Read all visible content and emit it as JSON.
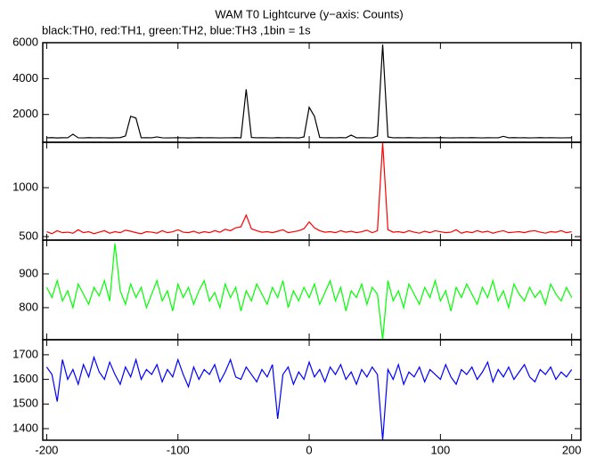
{
  "chart_data": [
    {
      "type": "line",
      "title": "WAM T0 Lightcurve (y−axis: Counts)",
      "subtitle": "black:TH0, red:TH1, green:TH2, blue:TH3 ,1bin = 1s",
      "x": [
        -200,
        -196,
        -192,
        -188,
        -184,
        -180,
        -176,
        -172,
        -168,
        -164,
        -160,
        -156,
        -152,
        -148,
        -144,
        -140,
        -136,
        -132,
        -128,
        -124,
        -120,
        -116,
        -112,
        -108,
        -104,
        -100,
        -96,
        -92,
        -88,
        -84,
        -80,
        -76,
        -72,
        -68,
        -64,
        -60,
        -56,
        -52,
        -48,
        -44,
        -40,
        -36,
        -32,
        -28,
        -24,
        -20,
        -16,
        -12,
        -8,
        -4,
        0,
        4,
        8,
        12,
        16,
        20,
        24,
        28,
        32,
        36,
        40,
        44,
        48,
        52,
        56,
        60,
        64,
        68,
        72,
        76,
        80,
        84,
        88,
        92,
        96,
        100,
        104,
        108,
        112,
        116,
        120,
        124,
        128,
        132,
        136,
        140,
        144,
        148,
        152,
        156,
        160,
        164,
        168,
        172,
        176,
        180,
        184,
        188,
        192,
        196,
        200
      ],
      "series": [
        {
          "name": "TH0",
          "color": "#000000",
          "values": [
            700,
            710,
            690,
            705,
            700,
            900,
            700,
            695,
            710,
            700,
            705,
            700,
            690,
            700,
            710,
            800,
            1900,
            1800,
            700,
            705,
            700,
            750,
            700,
            695,
            700,
            705,
            700,
            690,
            700,
            710,
            700,
            705,
            700,
            695,
            700,
            700,
            710,
            700,
            3400,
            720,
            700,
            705,
            700,
            695,
            710,
            700,
            705,
            700,
            690,
            750,
            2400,
            1900,
            720,
            700,
            705,
            700,
            710,
            700,
            850,
            700,
            705,
            700,
            695,
            800,
            5900,
            750,
            700,
            705,
            700,
            710,
            700,
            695,
            705,
            700,
            700,
            710,
            700,
            695,
            700,
            705,
            700,
            710,
            700,
            695,
            705,
            700,
            700,
            780,
            700,
            710,
            700,
            705,
            695,
            700,
            710,
            700,
            705,
            700,
            695,
            700,
            705
          ]
        }
      ],
      "xlim": [
        -203,
        207
      ],
      "xticks": [
        -200,
        -100,
        0,
        100,
        200
      ],
      "ylim": [
        450,
        6000
      ],
      "yticks": [
        2000,
        4000,
        6000
      ]
    },
    {
      "type": "line",
      "x": [
        -200,
        -196,
        -192,
        -188,
        -184,
        -180,
        -176,
        -172,
        -168,
        -164,
        -160,
        -156,
        -152,
        -148,
        -144,
        -140,
        -136,
        -132,
        -128,
        -124,
        -120,
        -116,
        -112,
        -108,
        -104,
        -100,
        -96,
        -92,
        -88,
        -84,
        -80,
        -76,
        -72,
        -68,
        -64,
        -60,
        -56,
        -52,
        -48,
        -44,
        -40,
        -36,
        -32,
        -28,
        -24,
        -20,
        -16,
        -12,
        -8,
        -4,
        0,
        4,
        8,
        12,
        16,
        20,
        24,
        28,
        32,
        36,
        40,
        44,
        48,
        52,
        56,
        60,
        64,
        68,
        72,
        76,
        80,
        84,
        88,
        92,
        96,
        100,
        104,
        108,
        112,
        116,
        120,
        124,
        128,
        132,
        136,
        140,
        144,
        148,
        152,
        156,
        160,
        164,
        168,
        172,
        176,
        180,
        184,
        188,
        192,
        196,
        200
      ],
      "series": [
        {
          "name": "TH1",
          "color": "#ff0000",
          "values": [
            550,
            530,
            560,
            540,
            545,
            535,
            570,
            540,
            550,
            530,
            545,
            560,
            535,
            550,
            540,
            565,
            555,
            540,
            530,
            550,
            545,
            535,
            560,
            540,
            550,
            570,
            545,
            540,
            555,
            535,
            550,
            540,
            560,
            545,
            575,
            560,
            590,
            600,
            720,
            580,
            560,
            545,
            550,
            540,
            555,
            570,
            540,
            550,
            560,
            580,
            650,
            590,
            560,
            545,
            550,
            540,
            560,
            545,
            555,
            540,
            550,
            565,
            540,
            560,
            1460,
            570,
            545,
            550,
            540,
            560,
            545,
            535,
            555,
            540,
            560,
            550,
            540,
            545,
            570,
            535,
            550,
            540,
            560,
            545,
            555,
            535,
            550,
            560,
            540,
            545,
            550,
            540,
            555,
            560,
            545,
            535,
            550,
            545,
            560,
            540,
            550
          ]
        }
      ],
      "xlim": [
        -203,
        207
      ],
      "xticks": [
        -200,
        -100,
        0,
        100,
        200
      ],
      "ylim": [
        464,
        1464
      ],
      "yticks": [
        500,
        1000
      ]
    },
    {
      "type": "line",
      "x": [
        -200,
        -196,
        -192,
        -188,
        -184,
        -180,
        -176,
        -172,
        -168,
        -164,
        -160,
        -156,
        -152,
        -148,
        -144,
        -140,
        -136,
        -132,
        -128,
        -124,
        -120,
        -116,
        -112,
        -108,
        -104,
        -100,
        -96,
        -92,
        -88,
        -84,
        -80,
        -76,
        -72,
        -68,
        -64,
        -60,
        -56,
        -52,
        -48,
        -44,
        -40,
        -36,
        -32,
        -28,
        -24,
        -20,
        -16,
        -12,
        -8,
        -4,
        0,
        4,
        8,
        12,
        16,
        20,
        24,
        28,
        32,
        36,
        40,
        44,
        48,
        52,
        56,
        60,
        64,
        68,
        72,
        76,
        80,
        84,
        88,
        92,
        96,
        100,
        104,
        108,
        112,
        116,
        120,
        124,
        128,
        132,
        136,
        140,
        144,
        148,
        152,
        156,
        160,
        164,
        168,
        172,
        176,
        180,
        184,
        188,
        192,
        196,
        200
      ],
      "series": [
        {
          "name": "TH2",
          "color": "#00ff00",
          "values": [
            860,
            830,
            880,
            820,
            850,
            800,
            870,
            840,
            810,
            860,
            835,
            880,
            820,
            990,
            850,
            810,
            870,
            830,
            860,
            800,
            840,
            880,
            820,
            850,
            790,
            870,
            830,
            860,
            810,
            850,
            880,
            820,
            845,
            800,
            870,
            830,
            860,
            790,
            850,
            820,
            870,
            840,
            810,
            860,
            830,
            880,
            800,
            850,
            820,
            860,
            830,
            870,
            810,
            845,
            880,
            820,
            860,
            790,
            850,
            830,
            870,
            810,
            860,
            840,
            705,
            880,
            820,
            850,
            800,
            870,
            840,
            810,
            860,
            830,
            880,
            820,
            850,
            790,
            860,
            830,
            870,
            840,
            810,
            860,
            830,
            880,
            820,
            850,
            800,
            870,
            840,
            820,
            860,
            830,
            850,
            810,
            870,
            840,
            820,
            860,
            830
          ]
        }
      ],
      "xlim": [
        -203,
        207
      ],
      "xticks": [
        -200,
        -100,
        0,
        100,
        200
      ],
      "ylim": [
        705,
        1000
      ],
      "yticks": [
        800,
        900
      ]
    },
    {
      "type": "line",
      "x": [
        -200,
        -196,
        -192,
        -188,
        -184,
        -180,
        -176,
        -172,
        -168,
        -164,
        -160,
        -156,
        -152,
        -148,
        -144,
        -140,
        -136,
        -132,
        -128,
        -124,
        -120,
        -116,
        -112,
        -108,
        -104,
        -100,
        -96,
        -92,
        -88,
        -84,
        -80,
        -76,
        -72,
        -68,
        -64,
        -60,
        -56,
        -52,
        -48,
        -44,
        -40,
        -36,
        -32,
        -28,
        -24,
        -20,
        -16,
        -12,
        -8,
        -4,
        0,
        4,
        8,
        12,
        16,
        20,
        24,
        28,
        32,
        36,
        40,
        44,
        48,
        52,
        56,
        60,
        64,
        68,
        72,
        76,
        80,
        84,
        88,
        92,
        96,
        100,
        104,
        108,
        112,
        116,
        120,
        124,
        128,
        132,
        136,
        140,
        144,
        148,
        152,
        156,
        160,
        164,
        168,
        172,
        176,
        180,
        184,
        188,
        192,
        196,
        200
      ],
      "series": [
        {
          "name": "TH3",
          "color": "#0000ff",
          "values": [
            1650,
            1620,
            1510,
            1680,
            1600,
            1640,
            1580,
            1660,
            1610,
            1690,
            1630,
            1600,
            1670,
            1620,
            1580,
            1650,
            1610,
            1680,
            1600,
            1640,
            1620,
            1660,
            1590,
            1640,
            1610,
            1680,
            1620,
            1570,
            1650,
            1600,
            1640,
            1620,
            1660,
            1590,
            1630,
            1680,
            1610,
            1600,
            1650,
            1620,
            1590,
            1640,
            1610,
            1660,
            1440,
            1620,
            1650,
            1580,
            1630,
            1600,
            1670,
            1610,
            1640,
            1590,
            1650,
            1620,
            1660,
            1600,
            1630,
            1580,
            1640,
            1610,
            1650,
            1620,
            1353,
            1640,
            1600,
            1660,
            1580,
            1630,
            1610,
            1650,
            1590,
            1640,
            1620,
            1600,
            1660,
            1610,
            1580,
            1640,
            1620,
            1650,
            1600,
            1630,
            1670,
            1590,
            1640,
            1610,
            1650,
            1600,
            1630,
            1660,
            1610,
            1590,
            1640,
            1620,
            1650,
            1600,
            1630,
            1610,
            1640
          ]
        }
      ],
      "xlim": [
        -203,
        207
      ],
      "xticks": [
        -200,
        -100,
        0,
        100,
        200
      ],
      "ylim": [
        1353,
        1761
      ],
      "yticks": [
        1400,
        1500,
        1600,
        1700
      ],
      "show_xtick_labels": true
    }
  ]
}
